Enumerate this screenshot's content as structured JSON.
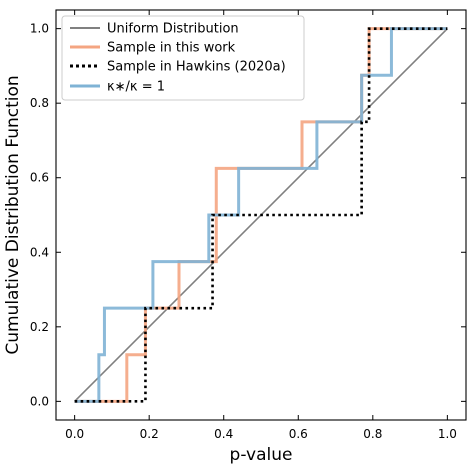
{
  "chart_data": {
    "type": "line",
    "xlabel": "p-value",
    "ylabel": "Cumulative Distribution Function",
    "xlim": [
      -0.05,
      1.05
    ],
    "ylim": [
      -0.05,
      1.05
    ],
    "xticks": [
      "0.0",
      "0.2",
      "0.4",
      "0.6",
      "0.8",
      "1.0"
    ],
    "yticks": [
      "0.0",
      "0.2",
      "0.4",
      "0.6",
      "0.8",
      "1.0"
    ],
    "grid": false,
    "legend_position": "top-left",
    "series": [
      {
        "name": "Uniform Distribution",
        "color": "#808080",
        "style": "solid",
        "x": [
          0.0,
          1.0
        ],
        "y": [
          0.0,
          1.0
        ]
      },
      {
        "name": "Sample in this work",
        "color": "#f4a582",
        "style": "solid",
        "x": [
          0.0,
          0.14,
          0.14,
          0.19,
          0.19,
          0.28,
          0.28,
          0.38,
          0.38,
          0.61,
          0.61,
          0.77,
          0.77,
          0.79,
          0.79,
          1.0
        ],
        "y": [
          0.0,
          0.0,
          0.125,
          0.125,
          0.25,
          0.25,
          0.375,
          0.375,
          0.625,
          0.625,
          0.75,
          0.75,
          0.875,
          0.875,
          1.0,
          1.0
        ]
      },
      {
        "name": "Sample in Hawkins (2020a)",
        "color": "#000000",
        "style": "dotted",
        "x": [
          0.0,
          0.19,
          0.19,
          0.37,
          0.37,
          0.77,
          0.77,
          0.79,
          0.79,
          1.0
        ],
        "y": [
          0.0,
          0.0,
          0.25,
          0.25,
          0.5,
          0.5,
          0.75,
          0.75,
          1.0,
          1.0
        ]
      },
      {
        "name": "κ∗/κ = 1",
        "color": "#7fb3d5",
        "style": "solid",
        "x": [
          0.0,
          0.065,
          0.065,
          0.08,
          0.08,
          0.21,
          0.21,
          0.36,
          0.36,
          0.44,
          0.44,
          0.65,
          0.65,
          0.77,
          0.77,
          0.85,
          0.85,
          1.0
        ],
        "y": [
          0.0,
          0.0,
          0.125,
          0.125,
          0.25,
          0.25,
          0.375,
          0.375,
          0.5,
          0.5,
          0.625,
          0.625,
          0.75,
          0.75,
          0.875,
          0.875,
          1.0,
          1.0
        ]
      }
    ]
  }
}
